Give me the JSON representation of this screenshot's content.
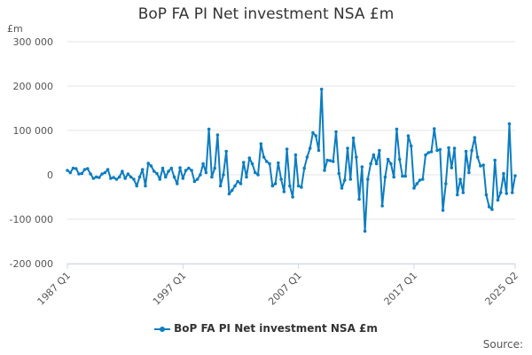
{
  "chart_data": {
    "type": "line",
    "title": "BoP FA PI Net investment NSA £m",
    "unit_label": "£m",
    "ylim": [
      -200000,
      300000
    ],
    "y_ticks": [
      "300 000",
      "200 000",
      "100 000",
      "0",
      "-100 000",
      "-200 000"
    ],
    "y_tick_values": [
      300000,
      200000,
      100000,
      0,
      -100000,
      -200000
    ],
    "x_ticks": [
      "1987 Q1",
      "1997 Q1",
      "2007 Q1",
      "2017 Q1",
      "2025 Q2"
    ],
    "grid": true,
    "legend_position": "bottom",
    "color": "#0d7dc1",
    "series": [
      {
        "name": "BoP FA PI Net investment NSA £m",
        "x_start": "1987 Q1",
        "x_end": "2025 Q2",
        "values": [
          10000,
          5000,
          15000,
          14000,
          2000,
          3000,
          12000,
          14000,
          2000,
          -8000,
          -5000,
          -6000,
          2000,
          5000,
          12000,
          -8000,
          -6000,
          -10000,
          -5000,
          8000,
          -8000,
          2000,
          -5000,
          -10000,
          -25000,
          -5000,
          12000,
          -25000,
          26000,
          20000,
          8000,
          3000,
          -10000,
          15000,
          -5000,
          8000,
          15000,
          -5000,
          -20000,
          16000,
          -8000,
          10000,
          15000,
          10000,
          -15000,
          -10000,
          0,
          25000,
          5000,
          103000,
          -5000,
          15000,
          90000,
          -25000,
          0,
          53000,
          -43000,
          -35000,
          -25000,
          -15000,
          -20000,
          28000,
          -5000,
          38000,
          25000,
          5000,
          0,
          70000,
          40000,
          30000,
          25000,
          -25000,
          -20000,
          27000,
          -10000,
          -38000,
          58000,
          -25000,
          -50000,
          45000,
          -25000,
          -28000,
          15000,
          40000,
          60000,
          95000,
          88000,
          55000,
          193000,
          10000,
          33000,
          32000,
          30000,
          97000,
          3000,
          -30000,
          -12000,
          60000,
          -10000,
          83000,
          40000,
          -55000,
          18000,
          -127000,
          -10000,
          25000,
          45000,
          25000,
          55000,
          -70000,
          -5000,
          35000,
          25000,
          -5000,
          103000,
          35000,
          -3000,
          -3000,
          88000,
          65000,
          -30000,
          -20000,
          -12000,
          -10000,
          45000,
          50000,
          52000,
          104000,
          55000,
          57000,
          -80000,
          -20000,
          61000,
          16000,
          60000,
          -45000,
          -10000,
          -40000,
          53000,
          5000,
          55000,
          84000,
          40000,
          20000,
          22000,
          -45000,
          -72000,
          -78000,
          33000,
          -57000,
          -40000,
          3000,
          -42000,
          115000,
          -40000,
          -2000
        ]
      }
    ]
  },
  "source_label": "Source:"
}
